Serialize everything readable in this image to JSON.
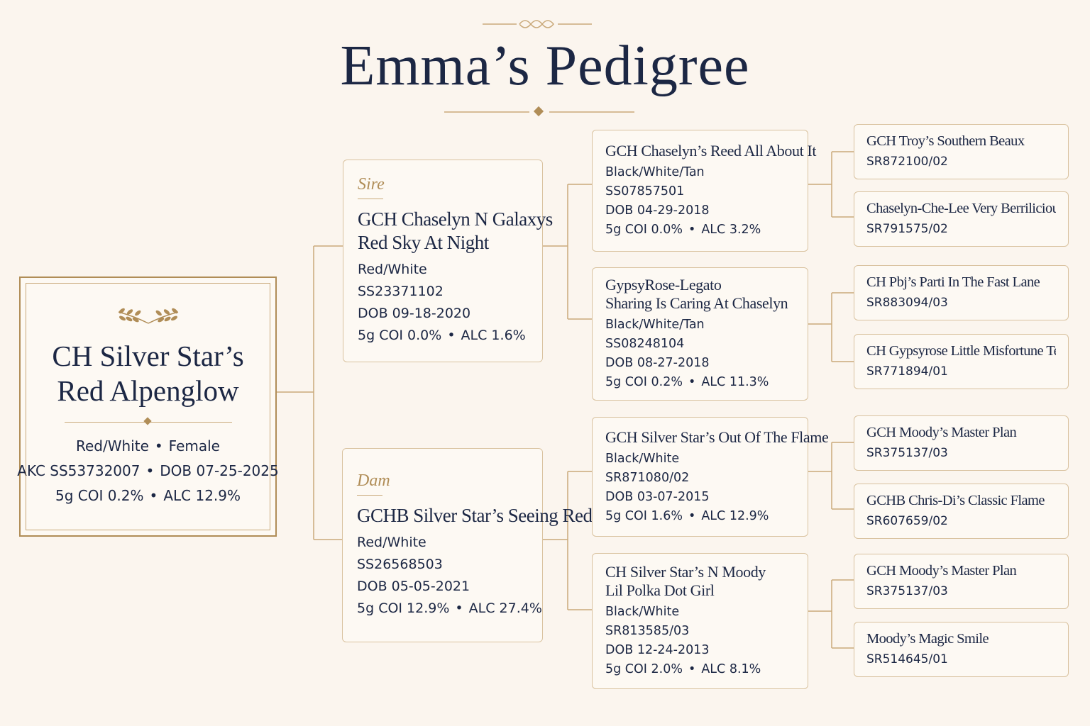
{
  "header": {
    "title": "Emma’s Pedigree"
  },
  "subject": {
    "name": [
      "CH Silver Star’s",
      "Red Alpenglow"
    ],
    "color": "Red/White",
    "sex": "Female",
    "registration": "AKC SS53732007",
    "dob": "DOB 07-25-2025",
    "coi": "5g COI 0.2%",
    "alc": "ALC 12.9%"
  },
  "parents": [
    {
      "role": "Sire",
      "name": [
        "GCH Chaselyn N Galaxys",
        "Red Sky At Night"
      ],
      "color": "Red/White",
      "registration": "SS23371102",
      "dob": "DOB 09-18-2020",
      "coi": "5g COI 0.0%",
      "alc": "ALC 1.6%"
    },
    {
      "role": "Dam",
      "name": [
        "GCHB Silver Star’s Seeing Red"
      ],
      "color": "Red/White",
      "registration": "SS26568503",
      "dob": "DOB 05-05-2021",
      "coi": "5g COI 12.9%",
      "alc": "ALC 27.4%"
    }
  ],
  "grandparents": [
    {
      "name": [
        "GCH Chaselyn’s Reed All About It"
      ],
      "color": "Black/White/Tan",
      "registration": "SS07857501",
      "dob": "DOB 04-29-2018",
      "coi": "5g COI 0.0%",
      "alc": "ALC 3.2%"
    },
    {
      "name": [
        "GypsyRose-Legato",
        "Sharing Is Caring At Chaselyn"
      ],
      "color": "Black/White/Tan",
      "registration": "SS08248104",
      "dob": "DOB 08-27-2018",
      "coi": "5g COI 0.2%",
      "alc": "ALC 11.3%"
    },
    {
      "name": [
        "GCH Silver Star’s Out Of The Flame"
      ],
      "color": "Black/White",
      "registration": "SR871080/02",
      "dob": "DOB 03-07-2015",
      "coi": "5g COI 1.6%",
      "alc": "ALC 12.9%"
    },
    {
      "name": [
        "CH Silver Star’s N Moody",
        "Lil Polka Dot Girl"
      ],
      "color": "Black/White",
      "registration": "SR813585/03",
      "dob": "DOB 12-24-2013",
      "coi": "5g COI 2.0%",
      "alc": "ALC 8.1%"
    }
  ],
  "great_grandparents": [
    {
      "name": "GCH Troy’s Southern Beaux",
      "registration": "SR872100/02"
    },
    {
      "name": "Chaselyn-Che-Lee Very Berrilicious",
      "registration": "SR791575/02"
    },
    {
      "name": "CH Pbj’s Parti In The Fast Lane",
      "registration": "SR883094/03"
    },
    {
      "name": "CH Gypsyrose Little Misfortune Teller",
      "registration": "SR771894/01"
    },
    {
      "name": "GCH Moody’s Master Plan",
      "registration": "SR375137/03"
    },
    {
      "name": "GCHB Chris-Di’s Classic Flame",
      "registration": "SR607659/02"
    },
    {
      "name": "GCH Moody’s Master Plan",
      "registration": "SR375137/03"
    },
    {
      "name": "Moody’s Magic Smile",
      "registration": "SR514645/01"
    }
  ]
}
